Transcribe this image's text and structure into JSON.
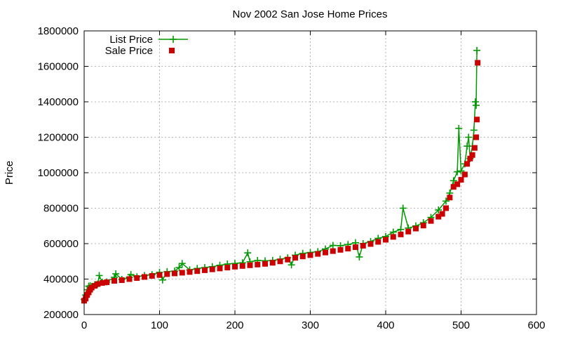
{
  "chart_data": {
    "type": "line",
    "title": "Nov 2002 San Jose Home Prices",
    "xlabel": "",
    "ylabel": "Price",
    "xlim": [
      0,
      600
    ],
    "ylim": [
      200000,
      1800000
    ],
    "x_ticks": [
      0,
      100,
      200,
      300,
      400,
      500,
      600
    ],
    "y_ticks": [
      200000,
      400000,
      600000,
      800000,
      1000000,
      1200000,
      1400000,
      1600000,
      1800000
    ],
    "grid": true,
    "legend_position": "top-left",
    "series": [
      {
        "name": "List Price",
        "style": "line-with-plus-markers",
        "color": "#009900",
        "points": [
          [
            0,
            285000
          ],
          [
            2,
            310000
          ],
          [
            4,
            340000
          ],
          [
            6,
            360000
          ],
          [
            8,
            362000
          ],
          [
            10,
            358000
          ],
          [
            14,
            368000
          ],
          [
            18,
            372000
          ],
          [
            20,
            420000
          ],
          [
            24,
            382000
          ],
          [
            30,
            384000
          ],
          [
            40,
            410000
          ],
          [
            42,
            430000
          ],
          [
            50,
            398000
          ],
          [
            60,
            410000
          ],
          [
            62,
            425000
          ],
          [
            70,
            413000
          ],
          [
            80,
            420000
          ],
          [
            90,
            425000
          ],
          [
            100,
            438000
          ],
          [
            104,
            395000
          ],
          [
            110,
            442000
          ],
          [
            120,
            445000
          ],
          [
            126,
            465000
          ],
          [
            130,
            488000
          ],
          [
            140,
            452000
          ],
          [
            150,
            460000
          ],
          [
            160,
            465000
          ],
          [
            170,
            470000
          ],
          [
            180,
            478000
          ],
          [
            190,
            485000
          ],
          [
            200,
            488000
          ],
          [
            210,
            492000
          ],
          [
            217,
            548000
          ],
          [
            220,
            498000
          ],
          [
            230,
            505000
          ],
          [
            240,
            503000
          ],
          [
            250,
            505000
          ],
          [
            260,
            512000
          ],
          [
            270,
            520000
          ],
          [
            275,
            480000
          ],
          [
            280,
            535000
          ],
          [
            290,
            545000
          ],
          [
            300,
            550000
          ],
          [
            310,
            555000
          ],
          [
            320,
            570000
          ],
          [
            330,
            590000
          ],
          [
            340,
            588000
          ],
          [
            350,
            595000
          ],
          [
            360,
            605000
          ],
          [
            365,
            525000
          ],
          [
            370,
            600000
          ],
          [
            380,
            612000
          ],
          [
            390,
            630000
          ],
          [
            400,
            640000
          ],
          [
            410,
            665000
          ],
          [
            420,
            680000
          ],
          [
            423,
            800000
          ],
          [
            430,
            688000
          ],
          [
            440,
            700000
          ],
          [
            450,
            718000
          ],
          [
            460,
            748000
          ],
          [
            470,
            790000
          ],
          [
            480,
            840000
          ],
          [
            485,
            885000
          ],
          [
            490,
            955000
          ],
          [
            495,
            1005000
          ],
          [
            497,
            1250000
          ],
          [
            500,
            1010000
          ],
          [
            505,
            1050000
          ],
          [
            508,
            1150000
          ],
          [
            510,
            1200000
          ],
          [
            512,
            1080000
          ],
          [
            515,
            1150000
          ],
          [
            517,
            1240000
          ],
          [
            519,
            1400000
          ],
          [
            520,
            1380000
          ],
          [
            521,
            1690000
          ]
        ]
      },
      {
        "name": "Sale Price",
        "style": "square-markers",
        "color": "#cc0000",
        "points": [
          [
            0,
            278000
          ],
          [
            2,
            290000
          ],
          [
            4,
            310000
          ],
          [
            6,
            325000
          ],
          [
            8,
            340000
          ],
          [
            10,
            352000
          ],
          [
            14,
            362000
          ],
          [
            18,
            372000
          ],
          [
            24,
            378000
          ],
          [
            30,
            382000
          ],
          [
            40,
            390000
          ],
          [
            50,
            394000
          ],
          [
            60,
            400000
          ],
          [
            70,
            406000
          ],
          [
            80,
            412000
          ],
          [
            90,
            418000
          ],
          [
            100,
            423000
          ],
          [
            110,
            428000
          ],
          [
            120,
            432000
          ],
          [
            130,
            436000
          ],
          [
            140,
            440000
          ],
          [
            150,
            445000
          ],
          [
            160,
            450000
          ],
          [
            170,
            455000
          ],
          [
            180,
            460000
          ],
          [
            190,
            465000
          ],
          [
            200,
            470000
          ],
          [
            210,
            474000
          ],
          [
            220,
            478000
          ],
          [
            230,
            482000
          ],
          [
            240,
            486000
          ],
          [
            250,
            492000
          ],
          [
            260,
            500000
          ],
          [
            270,
            510000
          ],
          [
            280,
            520000
          ],
          [
            290,
            528000
          ],
          [
            300,
            535000
          ],
          [
            310,
            542000
          ],
          [
            320,
            550000
          ],
          [
            330,
            558000
          ],
          [
            340,
            565000
          ],
          [
            350,
            572000
          ],
          [
            360,
            580000
          ],
          [
            370,
            588000
          ],
          [
            380,
            598000
          ],
          [
            390,
            610000
          ],
          [
            400,
            622000
          ],
          [
            410,
            638000
          ],
          [
            420,
            652000
          ],
          [
            430,
            668000
          ],
          [
            440,
            685000
          ],
          [
            450,
            702000
          ],
          [
            460,
            728000
          ],
          [
            470,
            752000
          ],
          [
            475,
            768000
          ],
          [
            480,
            800000
          ],
          [
            485,
            860000
          ],
          [
            490,
            920000
          ],
          [
            495,
            935000
          ],
          [
            500,
            960000
          ],
          [
            505,
            990000
          ],
          [
            508,
            1050000
          ],
          [
            512,
            1080000
          ],
          [
            515,
            1100000
          ],
          [
            518,
            1140000
          ],
          [
            520,
            1200000
          ],
          [
            521,
            1300000
          ],
          [
            522,
            1620000
          ]
        ]
      }
    ]
  }
}
